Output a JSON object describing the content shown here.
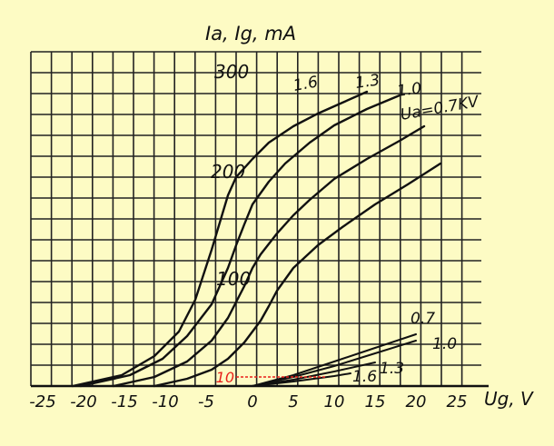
{
  "chart_data": {
    "type": "line",
    "title": "",
    "ylabel": "Ia, Ig, mA",
    "xlabel": "Ug, V",
    "xlim": [
      -27,
      28
    ],
    "ylim": [
      0,
      345
    ],
    "grid": true,
    "x_ticks": [
      "-25",
      "-20",
      "-15",
      "-10",
      "-5",
      "0",
      "5",
      "10",
      "15",
      "20",
      "25"
    ],
    "x_tick_values": [
      -25,
      -20,
      -15,
      -10,
      -5,
      0,
      5,
      10,
      15,
      20,
      25
    ],
    "y_ticks": [
      "100",
      "200",
      "300"
    ],
    "y_tick_values": [
      100,
      200,
      300
    ],
    "reference": {
      "label": "10",
      "value": 10,
      "x_from": -2,
      "x_to": 9,
      "color": "#e8201a"
    },
    "anode_series": [
      {
        "name": "1.6",
        "x": [
          -22,
          -16,
          -12,
          -9,
          -7,
          -5,
          -4,
          -3,
          -2,
          0,
          2,
          5,
          8,
          11,
          14
        ],
        "y": [
          0,
          12,
          33,
          60,
          95,
          150,
          180,
          210,
          230,
          250,
          268,
          286,
          300,
          312,
          324
        ]
      },
      {
        "name": "1.3",
        "x": [
          -21,
          -15,
          -11,
          -8,
          -5,
          -3,
          -2,
          -1,
          0,
          2,
          4,
          7,
          10,
          14,
          18
        ],
        "y": [
          0,
          12,
          30,
          55,
          90,
          130,
          155,
          178,
          200,
          225,
          245,
          268,
          287,
          305,
          320
        ]
      },
      {
        "name": "1.0",
        "x": [
          -17,
          -12,
          -8,
          -5,
          -3,
          -1,
          0,
          1,
          3,
          5,
          7,
          10,
          14,
          18,
          21
        ],
        "y": [
          0,
          10,
          27,
          50,
          75,
          110,
          130,
          145,
          168,
          188,
          205,
          228,
          250,
          270,
          286
        ]
      },
      {
        "name": "Ua=0.7KV",
        "x": [
          -12,
          -8,
          -5,
          -3,
          -1,
          0,
          1,
          2,
          3,
          5,
          8,
          11,
          15,
          19,
          23
        ],
        "y": [
          0,
          8,
          18,
          30,
          48,
          60,
          72,
          88,
          105,
          130,
          155,
          175,
          200,
          222,
          245
        ]
      }
    ],
    "grid_series": [
      {
        "name": "0.7",
        "x": [
          0,
          5,
          10,
          15,
          20
        ],
        "y": [
          0,
          12,
          27,
          42,
          57
        ]
      },
      {
        "name": "1.0",
        "x": [
          0,
          5,
          10,
          15,
          20
        ],
        "y": [
          0,
          10,
          22,
          36,
          50
        ]
      },
      {
        "name": "1.3",
        "x": [
          0,
          5,
          10,
          15
        ],
        "y": [
          0,
          7,
          16,
          26
        ]
      },
      {
        "name": "1.6",
        "x": [
          0,
          5,
          10,
          12
        ],
        "y": [
          0,
          5,
          11,
          14
        ]
      }
    ],
    "annotations": {
      "anode": [
        "1.6",
        "1.3",
        "1.0",
        "Ua=0.7KV"
      ],
      "grid": [
        "0.7",
        "1.0",
        "1.3",
        "1.6"
      ]
    },
    "line_color": "#111111",
    "background": "#fdfbc4"
  }
}
